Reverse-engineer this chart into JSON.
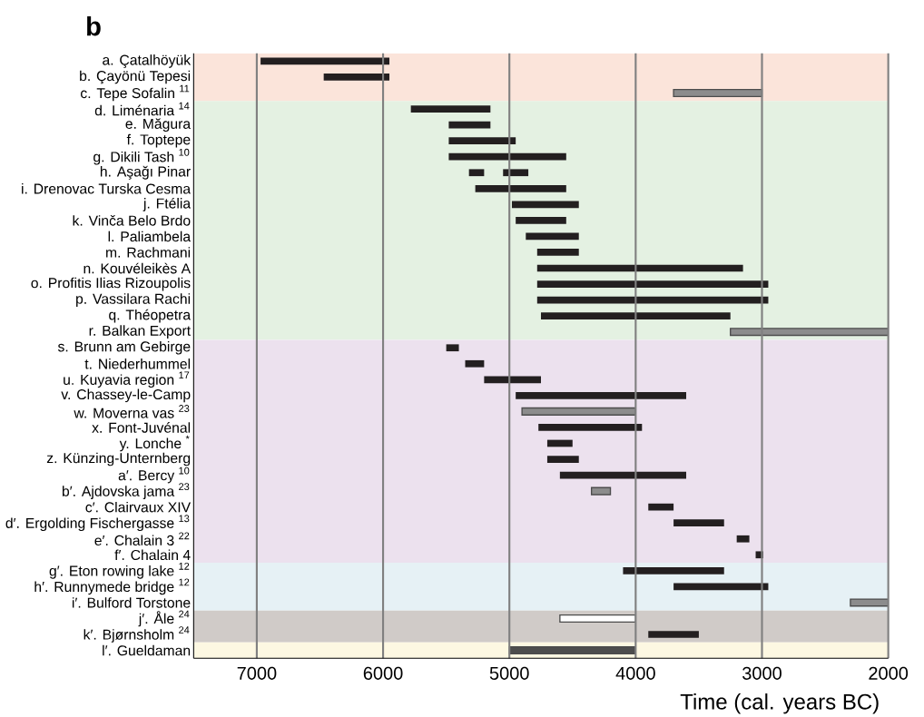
{
  "chart_data": {
    "type": "bar",
    "orientation": "horizontal",
    "title": "b",
    "xlabel": "Time (cal. years BC)",
    "categories": [
      "a. Çatalhöyük",
      "b. Çayönü Tepesi",
      "c. Tepe Sofalin $^{11}$",
      "d. Liménaria $^{14}$",
      "e. Măgura",
      "f. Toptepe",
      "g. Dikili Tash $^{10}$",
      "h. Aşağı Pinar",
      "i. Drenovac Turska Cesma",
      "j. Ftélia",
      "k. Vinča Belo Brdo",
      "l. Paliambela",
      "m. Rachmani",
      "n. Kouvéleikès A",
      "o. Profitis Ilias Rizoupolis",
      "p. Vassilara Rachi",
      "q. Théopetra",
      "r. Balkan Export",
      "s. Brunn am Gebirge",
      "t. Niederhummel",
      "u. Kuyavia region $^{17}$",
      "v. Chassey-le-Camp",
      "w. Moverna vas $^{23}$",
      "x. Font-Juvénal",
      "y. Lonche $^{*}$",
      "z. Künzing-Unternberg",
      "a′. Bercy $^{10}$",
      "b′. Ajdovska jama $^{23}$",
      "c′. Clairvaux XIV",
      "d′. Ergolding Fischergasse $^{13}$",
      "e′. Chalain 3 $^{22}$",
      "f′. Chalain 4",
      "g′. Eton rowing lake $^{12}$",
      "h′. Runnymede bridge $^{12}$",
      "i′. Bulford Torstone",
      "j′. Åle $^{24}$",
      "k′. Bjørnsholm $^{24}$",
      "l′. Gueldaman"
    ],
    "series": [
      {
        "color": "#231f20",
        "base": [
          5950,
          5950,
          null,
          5150,
          5150,
          4950,
          4550,
          5200,
          4550,
          4450,
          4550,
          4450,
          4450,
          3150,
          2950,
          2950,
          3250,
          null,
          5400,
          5200,
          4750,
          3600,
          null,
          3950,
          4500,
          4450,
          3600,
          null,
          3700,
          3300,
          3100,
          2990,
          3300,
          2950,
          null,
          null,
          3500,
          null
        ],
        "values": [
          1020,
          520,
          null,
          630,
          330,
          530,
          930,
          120,
          720,
          530,
          400,
          420,
          330,
          1630,
          1830,
          1830,
          1500,
          null,
          100,
          150,
          450,
          1350,
          null,
          820,
          200,
          250,
          1000,
          null,
          200,
          400,
          100,
          60,
          800,
          750,
          null,
          null,
          400,
          null
        ]
      },
      {
        "color": "#231f20",
        "base": [
          null,
          null,
          null,
          null,
          null,
          null,
          null,
          4850,
          null,
          null,
          null,
          null,
          null,
          null,
          null,
          null,
          null,
          null,
          null,
          null,
          null,
          null,
          null,
          null,
          null,
          null,
          null,
          null,
          null,
          null,
          null,
          null,
          null,
          null,
          null,
          null,
          null,
          null
        ],
        "values": [
          null,
          null,
          null,
          null,
          null,
          null,
          null,
          200,
          null,
          null,
          null,
          null,
          null,
          null,
          null,
          null,
          null,
          null,
          null,
          null,
          null,
          null,
          null,
          null,
          null,
          null,
          null,
          null,
          null,
          null,
          null,
          null,
          null,
          null,
          null,
          null,
          null,
          null
        ]
      },
      {
        "color": "#8c8c8c",
        "base": [
          null,
          null,
          3000,
          null,
          null,
          null,
          null,
          null,
          null,
          null,
          null,
          null,
          null,
          null,
          null,
          null,
          null,
          2000,
          null,
          null,
          null,
          null,
          4000,
          null,
          null,
          null,
          null,
          4200,
          null,
          null,
          null,
          null,
          null,
          null,
          2000,
          null,
          null,
          null
        ],
        "values": [
          null,
          null,
          700,
          null,
          null,
          null,
          null,
          null,
          null,
          null,
          null,
          null,
          null,
          null,
          null,
          null,
          null,
          1250,
          null,
          null,
          null,
          null,
          900,
          null,
          null,
          null,
          null,
          150,
          null,
          null,
          null,
          null,
          null,
          null,
          300,
          null,
          null,
          null
        ]
      },
      {
        "color": "#ffffff",
        "base": [
          null,
          null,
          null,
          null,
          null,
          null,
          null,
          null,
          null,
          null,
          null,
          null,
          null,
          null,
          null,
          null,
          null,
          null,
          null,
          null,
          null,
          null,
          null,
          null,
          null,
          null,
          null,
          null,
          null,
          null,
          null,
          null,
          null,
          null,
          null,
          4000,
          null,
          null
        ],
        "values": [
          null,
          null,
          null,
          null,
          null,
          null,
          null,
          null,
          null,
          null,
          null,
          null,
          null,
          null,
          null,
          null,
          null,
          null,
          null,
          null,
          null,
          null,
          null,
          null,
          null,
          null,
          null,
          null,
          null,
          null,
          null,
          null,
          null,
          null,
          null,
          600,
          null,
          null
        ]
      },
      {
        "color": "#4d4d4d",
        "base": [
          null,
          null,
          null,
          null,
          null,
          null,
          null,
          null,
          null,
          null,
          null,
          null,
          null,
          null,
          null,
          null,
          null,
          null,
          null,
          null,
          null,
          null,
          null,
          null,
          null,
          null,
          null,
          null,
          null,
          null,
          null,
          null,
          null,
          null,
          null,
          null,
          null,
          4000
        ],
        "values": [
          null,
          null,
          null,
          null,
          null,
          null,
          null,
          null,
          null,
          null,
          null,
          null,
          null,
          null,
          null,
          null,
          null,
          null,
          null,
          null,
          null,
          null,
          null,
          null,
          null,
          null,
          null,
          null,
          null,
          null,
          null,
          null,
          null,
          null,
          null,
          null,
          null,
          1000
        ]
      }
    ],
    "xlim": [
      7500,
      2000
    ],
    "xticks": [
      7000,
      6000,
      5000,
      4000,
      3000,
      2000
    ],
    "grid": "x",
    "bands": [
      {
        "axis": "y",
        "from": "a. Çatalhöyük",
        "to": "c. Tepe Sofalin $^{11}$",
        "color": "#fbe4da"
      },
      {
        "axis": "y",
        "from": "d. Liménaria $^{14}$",
        "to": "r. Balkan Export",
        "color": "#e4f1e2"
      },
      {
        "axis": "y",
        "from": "s. Brunn am Gebirge",
        "to": "f′. Chalain 4",
        "color": "#ece1ee"
      },
      {
        "axis": "y",
        "from": "g′. Eton rowing lake $^{12}$",
        "to": "i′. Bulford Torstone",
        "color": "#e6f1f5"
      },
      {
        "axis": "y",
        "from": "j′. Åle $^{24}$",
        "to": "k′. Bjørnsholm $^{24}$",
        "color": "#d0cbc8"
      },
      {
        "axis": "y",
        "from": "l′. Gueldaman",
        "to": "l′. Gueldaman",
        "color": "#fdf8e2"
      }
    ]
  }
}
